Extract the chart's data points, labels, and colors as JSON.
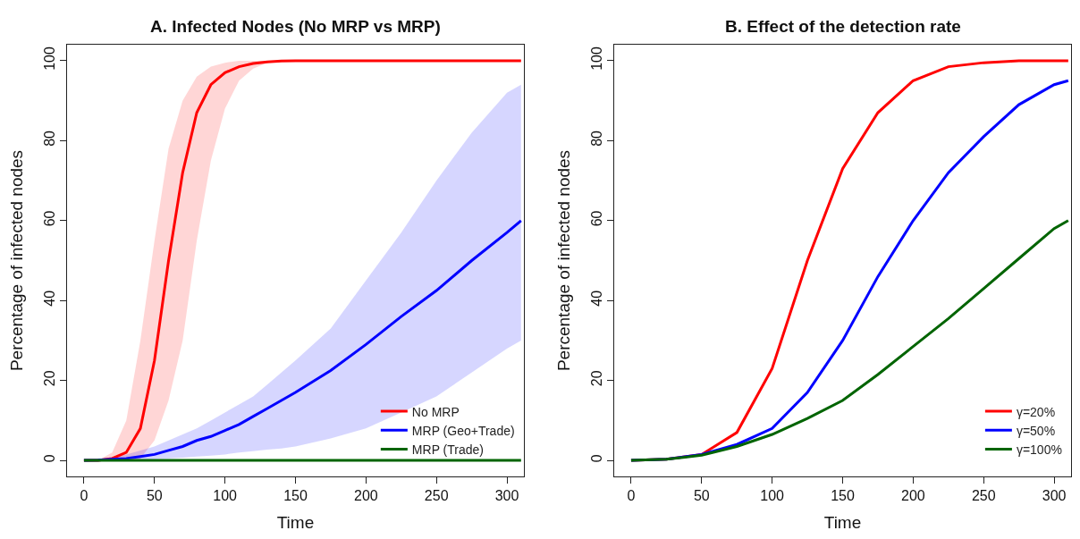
{
  "chart_data": [
    {
      "type": "line",
      "title": "A. Infected Nodes (No MRP vs MRP)",
      "xlabel": "Time",
      "ylabel": "Percentage of infected nodes",
      "x": [
        0,
        10,
        20,
        30,
        40,
        50,
        60,
        70,
        80,
        90,
        100,
        110,
        120,
        130,
        140,
        150,
        175,
        200,
        225,
        250,
        275,
        300,
        310
      ],
      "xlim": [
        -12,
        312
      ],
      "ylim": [
        -4,
        104
      ],
      "xticks": [
        0,
        50,
        100,
        150,
        200,
        250,
        300
      ],
      "yticks": [
        0,
        20,
        40,
        60,
        80,
        100
      ],
      "legend": "bottom right",
      "series": [
        {
          "name": "No MRP",
          "color": "#ff0000",
          "values": [
            0,
            0,
            0.5,
            2,
            8,
            25,
            50,
            72,
            87,
            94,
            97,
            98.5,
            99.3,
            99.7,
            99.9,
            100,
            100,
            100,
            100,
            100,
            100,
            100,
            100
          ],
          "lower": [
            0,
            0,
            0,
            0,
            0.5,
            5,
            15,
            30,
            55,
            75,
            88,
            95,
            98,
            99.5,
            100,
            100,
            100,
            100,
            100,
            100,
            100,
            100,
            100
          ],
          "upper": [
            0,
            0,
            2,
            10,
            30,
            55,
            78,
            90,
            96,
            98.5,
            99.5,
            100,
            100,
            100,
            100,
            100,
            100,
            100,
            100,
            100,
            100,
            100,
            100
          ]
        },
        {
          "name": "MRP (Geo+Trade)",
          "color": "#0000ff",
          "values": [
            0,
            0.1,
            0.3,
            0.5,
            1,
            1.5,
            2.5,
            3.5,
            5,
            6,
            7.5,
            9,
            11,
            13,
            15,
            17,
            22.5,
            29,
            36,
            42.5,
            50,
            57,
            60
          ],
          "lower": [
            0,
            0,
            0,
            0.1,
            0.2,
            0.3,
            0.5,
            0.7,
            1,
            1.2,
            1.5,
            2,
            2.3,
            2.7,
            3,
            3.5,
            5.5,
            8,
            12,
            16,
            22,
            28,
            30
          ],
          "upper": [
            0,
            0.3,
            0.8,
            1.5,
            2.5,
            3.5,
            5,
            6.5,
            8,
            10,
            12,
            14,
            16,
            19,
            22,
            25,
            33,
            45,
            57,
            70,
            82,
            92,
            94
          ]
        },
        {
          "name": "MRP (Trade)",
          "color": "#006400",
          "values": [
            0,
            0,
            0,
            0,
            0,
            0,
            0,
            0,
            0,
            0,
            0,
            0,
            0,
            0,
            0,
            0,
            0,
            0,
            0,
            0,
            0,
            0,
            0
          ]
        }
      ]
    },
    {
      "type": "line",
      "title": "B. Effect of the detection rate",
      "xlabel": "Time",
      "ylabel": "Percentage of infected nodes",
      "x": [
        0,
        25,
        50,
        75,
        100,
        125,
        150,
        175,
        200,
        225,
        250,
        275,
        300,
        310
      ],
      "xlim": [
        -12,
        312
      ],
      "ylim": [
        -4,
        104
      ],
      "xticks": [
        0,
        50,
        100,
        150,
        200,
        250,
        300
      ],
      "yticks": [
        0,
        20,
        40,
        60,
        80,
        100
      ],
      "legend": "bottom right",
      "series": [
        {
          "name": "γ=20%",
          "color": "#ff0000",
          "values": [
            0,
            0.3,
            1.5,
            7,
            23,
            50,
            73,
            87,
            95,
            98.5,
            99.5,
            100,
            100,
            100
          ]
        },
        {
          "name": "γ=50%",
          "color": "#0000ff",
          "values": [
            0,
            0.3,
            1.5,
            4,
            8,
            17,
            30,
            46,
            60,
            72,
            81,
            89,
            94,
            95
          ]
        },
        {
          "name": "γ=100%",
          "color": "#006400",
          "values": [
            0,
            0.3,
            1.3,
            3.5,
            6.5,
            10.5,
            15,
            21.5,
            28.5,
            35.5,
            43,
            50.5,
            58,
            60
          ]
        }
      ]
    }
  ]
}
